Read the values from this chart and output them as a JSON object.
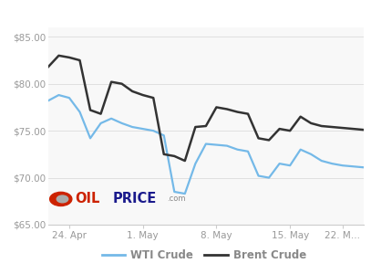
{
  "wti_x": [
    0,
    1,
    2,
    3,
    4,
    5,
    6,
    7,
    8,
    9,
    10,
    11,
    12,
    13,
    14,
    15,
    16,
    17,
    18,
    19,
    20,
    21,
    22,
    23,
    24,
    25,
    26,
    27,
    28,
    29,
    30
  ],
  "wti_y": [
    78.2,
    78.8,
    78.5,
    77.0,
    74.2,
    75.8,
    76.3,
    75.8,
    75.4,
    75.2,
    75.0,
    74.5,
    68.5,
    68.3,
    71.5,
    73.6,
    73.5,
    73.4,
    73.0,
    72.8,
    70.2,
    70.0,
    71.5,
    71.3,
    73.0,
    72.5,
    71.8,
    71.5,
    71.3,
    71.2,
    71.1
  ],
  "brent_x": [
    0,
    1,
    2,
    3,
    4,
    5,
    6,
    7,
    8,
    9,
    10,
    11,
    12,
    13,
    14,
    15,
    16,
    17,
    18,
    19,
    20,
    21,
    22,
    23,
    24,
    25,
    26,
    27,
    28,
    29,
    30
  ],
  "brent_y": [
    81.8,
    83.0,
    82.8,
    82.5,
    77.2,
    76.8,
    80.2,
    80.0,
    79.2,
    78.8,
    78.5,
    72.5,
    72.3,
    71.8,
    75.4,
    75.5,
    77.5,
    77.3,
    77.0,
    76.8,
    74.2,
    74.0,
    75.2,
    75.0,
    76.5,
    75.8,
    75.5,
    75.4,
    75.3,
    75.2,
    75.1
  ],
  "xlim": [
    0,
    30
  ],
  "ylim": [
    65,
    86
  ],
  "yticks": [
    65,
    70,
    75,
    80,
    85
  ],
  "ytick_labels": [
    "$65.00",
    "$70.00",
    "$75.00",
    "$80.00",
    "$85.00"
  ],
  "xtick_positions": [
    2,
    9,
    16,
    23,
    28
  ],
  "xtick_labels": [
    "24. Apr",
    "1. May",
    "8. May",
    "15. May",
    "22. M…"
  ],
  "wti_color": "#74b9e8",
  "brent_color": "#333333",
  "plot_bg_color": "#f8f8f8",
  "fig_bg_color": "#ffffff",
  "grid_color": "#e0e0e0",
  "wti_label": "WTI Crude",
  "brent_label": "Brent Crude",
  "legend_text_color": "#888888",
  "tick_color": "#999999",
  "logo_circle_color": "#cc2200",
  "logo_oil_color": "#cc2200",
  "logo_price_color": "#1a1a8c",
  "logo_com_color": "#888888"
}
